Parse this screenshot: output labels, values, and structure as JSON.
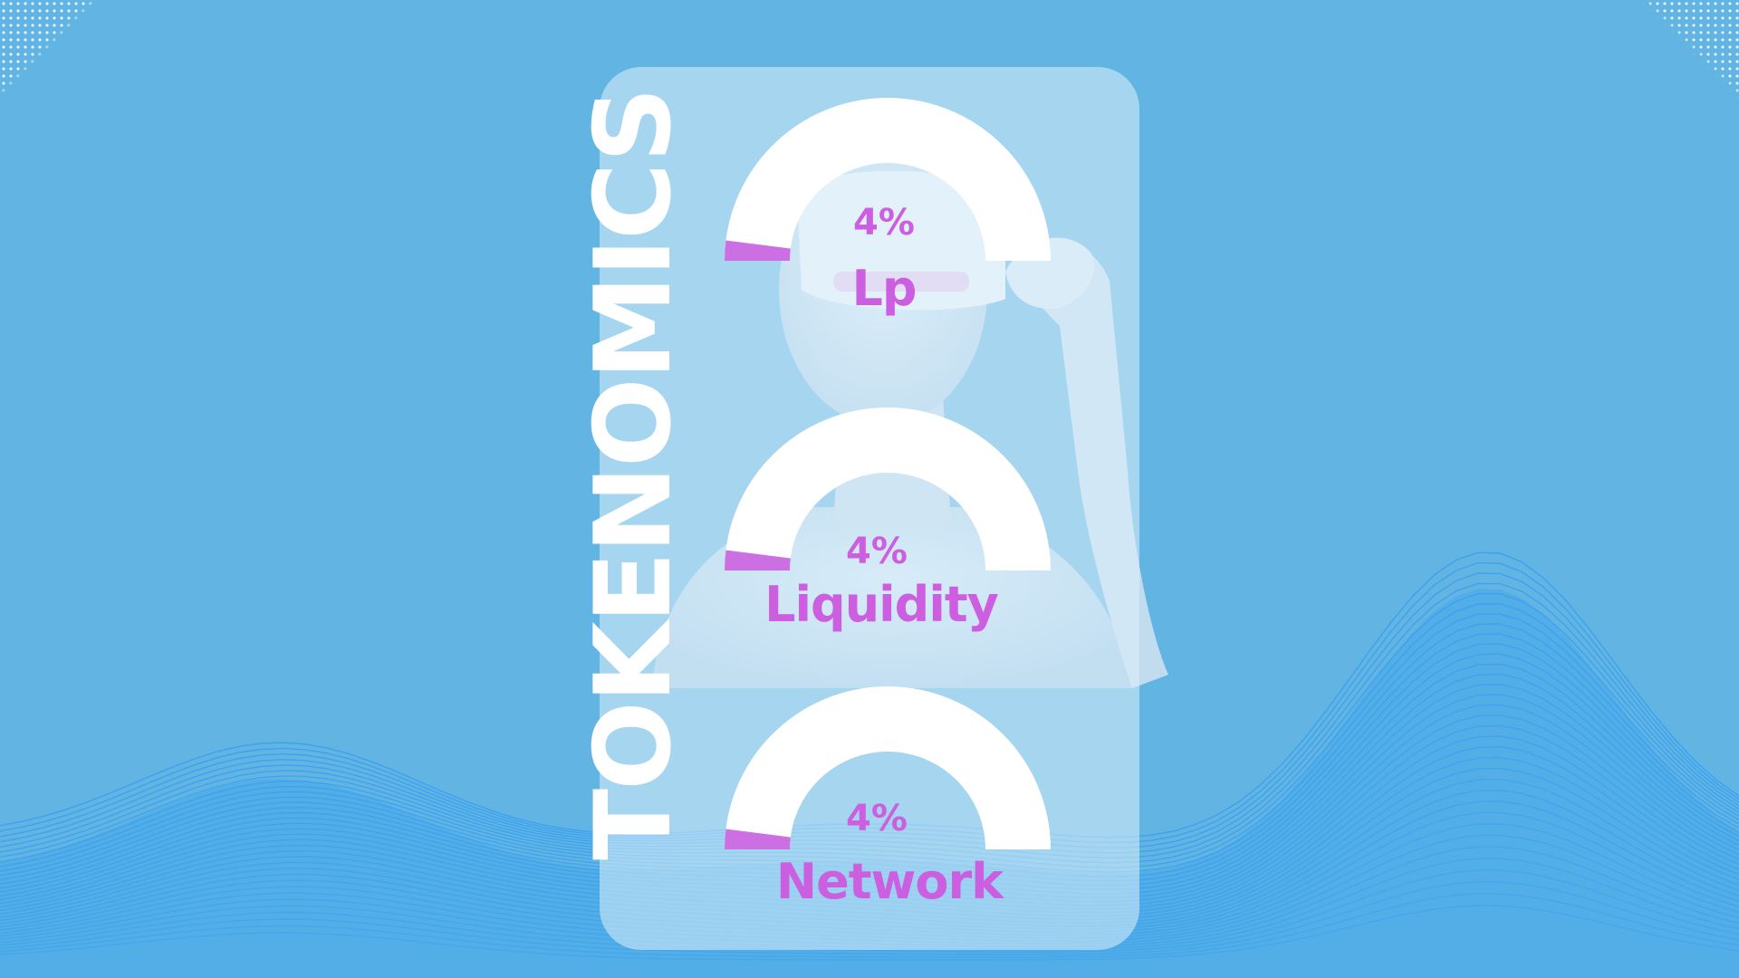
{
  "title": "TOKENOMICS",
  "colors": {
    "background": "#62b5e3",
    "wave": "#3aa0ef",
    "card": "#def0fa",
    "gauge_track": "#ffffff",
    "gauge_fill": "#cc6fe3",
    "label": "#cc5ee0",
    "title": "#ffffff"
  },
  "chart_data": [
    {
      "type": "gauge",
      "value": 4,
      "max": 100,
      "value_label": "4%",
      "label": "Lp"
    },
    {
      "type": "gauge",
      "value": 4,
      "max": 100,
      "value_label": "4%",
      "label": "Liquidity"
    },
    {
      "type": "gauge",
      "value": 4,
      "max": 100,
      "value_label": "4%",
      "label": "Network"
    }
  ]
}
